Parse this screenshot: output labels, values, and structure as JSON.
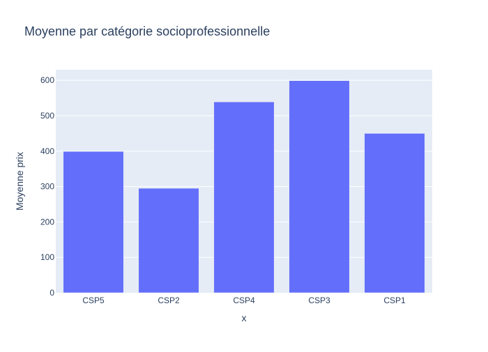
{
  "chart_data": {
    "type": "bar",
    "title": "Moyenne par catégorie socioprofessionnelle",
    "xlabel": "x",
    "ylabel": "Moyenne prix",
    "categories": [
      "CSP5",
      "CSP2",
      "CSP4",
      "CSP3",
      "CSP1"
    ],
    "values": [
      399,
      295,
      539,
      599,
      450
    ],
    "ylim": [
      0,
      630
    ],
    "yticks": [
      0,
      100,
      200,
      300,
      400,
      500,
      600
    ],
    "grid": true,
    "colors": {
      "bar": "#636efa",
      "plot_bg": "#e5ecf6",
      "grid": "#ffffff",
      "text": "#2a3f5f",
      "tick_text": "#2a3f5f"
    }
  }
}
